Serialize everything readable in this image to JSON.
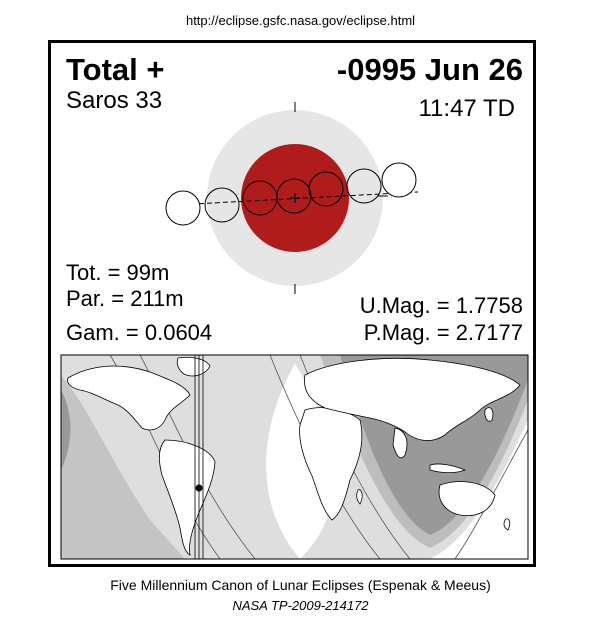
{
  "source_url": "http://eclipse.gsfc.nasa.gov/eclipse.html",
  "eclipse": {
    "type_label": "Total  +",
    "date": "-0995 Jun 26",
    "saros": "Saros  33",
    "time": "11:47 TD",
    "totality": "Tot. =  99m",
    "partiality": "Par. = 211m",
    "gamma": "Gam. = 0.0604",
    "umbral_magnitude": "U.Mag. = 1.7758",
    "penumbral_magnitude": "P.Mag. = 2.7177"
  },
  "colors": {
    "penumbra": "#e6e6e6",
    "umbra": "#b01c1c",
    "map_night": "#999999",
    "map_zone_dark": "#bdbdbd",
    "map_zone_light": "#dedede",
    "map_land": "#ffffff"
  },
  "footer": {
    "line1": "Five Millennium Canon of Lunar Eclipses (Espenak & Meeus)",
    "line2": "NASA TP-2009-214172"
  }
}
